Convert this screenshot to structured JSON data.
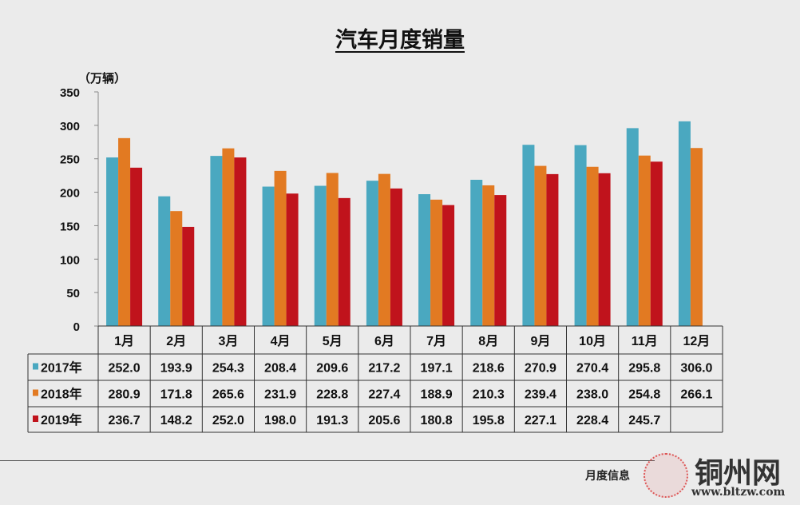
{
  "chart_data": {
    "type": "bar",
    "title": "汽车月度销量",
    "ylabel": "（万辆）",
    "ylim": [
      0,
      350
    ],
    "yticks": [
      0,
      50,
      100,
      150,
      200,
      250,
      300,
      350
    ],
    "categories": [
      "1月",
      "2月",
      "3月",
      "4月",
      "5月",
      "6月",
      "7月",
      "8月",
      "9月",
      "10月",
      "11月",
      "12月"
    ],
    "series": [
      {
        "name": "2017年",
        "color": "#4aa8c0",
        "values": [
          252.0,
          193.9,
          254.3,
          208.4,
          209.6,
          217.2,
          197.1,
          218.6,
          270.9,
          270.4,
          295.8,
          306.0
        ]
      },
      {
        "name": "2018年",
        "color": "#e27a22",
        "values": [
          280.9,
          171.8,
          265.6,
          231.9,
          228.8,
          227.4,
          188.9,
          210.3,
          239.4,
          238.0,
          254.8,
          266.1
        ]
      },
      {
        "name": "2019年",
        "color": "#c0131c",
        "values": [
          236.7,
          148.2,
          252.0,
          198.0,
          191.3,
          205.6,
          180.8,
          195.8,
          227.1,
          228.4,
          245.7,
          null
        ]
      }
    ],
    "legend": "data-table",
    "grid": false
  },
  "footer": {
    "source": "月度信息",
    "watermark": "铜州网",
    "watermark_url": "www.bltzw.com"
  }
}
